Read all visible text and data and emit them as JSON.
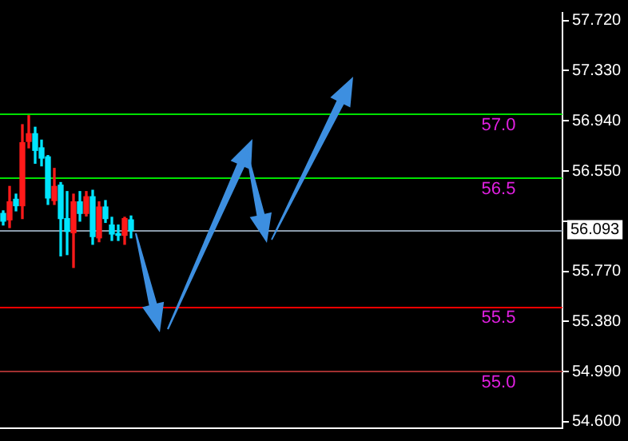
{
  "chart_data": {
    "type": "candlestick",
    "categories": [
      null,
      null,
      null,
      null,
      null,
      null,
      null,
      null,
      null,
      null,
      null,
      null,
      null,
      null,
      null,
      null,
      null,
      null,
      null,
      null,
      null,
      null,
      null,
      null,
      null,
      null,
      null,
      null,
      null,
      null,
      null,
      null,
      null,
      null,
      null,
      null,
      null,
      null,
      null,
      null,
      null,
      null,
      null,
      null,
      null,
      null,
      null,
      null,
      null,
      null,
      null,
      null,
      null,
      null,
      null,
      null,
      null,
      null,
      null,
      null,
      null,
      null,
      null,
      null,
      null,
      null,
      null,
      null,
      null,
      null,
      null,
      null,
      null,
      null,
      null,
      null,
      null,
      null,
      null,
      null,
      null,
      null,
      null,
      null,
      null,
      null,
      null,
      null
    ],
    "ohlc": [
      [
        56.22,
        56.24,
        56.13,
        56.16
      ],
      [
        56.17,
        56.43,
        56.11,
        56.31
      ],
      [
        56.33,
        56.37,
        56.24,
        56.28
      ],
      [
        56.28,
        56.91,
        56.18,
        56.77
      ],
      [
        56.78,
        56.98,
        56.73,
        56.84
      ],
      [
        56.84,
        56.89,
        56.61,
        56.71
      ],
      [
        56.73,
        56.79,
        56.59,
        56.65
      ],
      [
        56.66,
        56.67,
        56.29,
        56.34
      ],
      [
        56.32,
        56.57,
        56.29,
        56.43
      ],
      [
        56.44,
        56.46,
        55.89,
        56.18
      ],
      [
        56.18,
        56.39,
        55.9,
        56.08
      ],
      [
        56.07,
        56.37,
        55.8,
        56.31
      ],
      [
        56.31,
        56.39,
        56.16,
        56.22
      ],
      [
        56.22,
        56.39,
        56.2,
        56.35
      ],
      [
        56.35,
        56.4,
        55.98,
        56.04
      ],
      [
        56.03,
        56.31,
        56.0,
        56.27
      ],
      [
        56.27,
        56.32,
        56.15,
        56.18
      ],
      [
        56.13,
        56.19,
        56.01,
        56.06
      ],
      [
        56.06,
        56.13,
        56.01,
        56.05
      ],
      [
        56.05,
        56.19,
        55.98,
        56.18
      ],
      [
        56.17,
        56.2,
        56.03,
        56.09
      ],
      null,
      null,
      null,
      null,
      null,
      null,
      null,
      null,
      null,
      null,
      null,
      null,
      null,
      null,
      null,
      null,
      null,
      null,
      null,
      null,
      null,
      null,
      null,
      null,
      null,
      null,
      null,
      null,
      null,
      null,
      null,
      null,
      null,
      null,
      null,
      null,
      null,
      null,
      null,
      null,
      null,
      null,
      null,
      null,
      null,
      null,
      null,
      null,
      null,
      null,
      null,
      null,
      null,
      null,
      null,
      null,
      null,
      null,
      null,
      null,
      null,
      null,
      null,
      null,
      null,
      null,
      null
    ],
    "colors": [
      "#00e5ff",
      "#ff1a1a",
      "#00e5ff",
      "#ff1a1a",
      "#ff1a1a",
      "#00e5ff",
      "#00e5ff",
      "#00e5ff",
      "#ff1a1a",
      "#00e5ff",
      "#00e5ff",
      "#ff1a1a",
      "#00e5ff",
      "#ff1a1a",
      "#00e5ff",
      "#ff1a1a",
      "#00e5ff",
      "#00e5ff",
      "#00e5ff",
      "#ff1a1a",
      "#00e5ff",
      null,
      null,
      null,
      null,
      null,
      null,
      null,
      null,
      null,
      null,
      null,
      null,
      null,
      null,
      null,
      null,
      null,
      null,
      null,
      null,
      null,
      null,
      null,
      null,
      null,
      null,
      null,
      null,
      null,
      null,
      null,
      null,
      null,
      null,
      null,
      null,
      null,
      null,
      null,
      null,
      null,
      null,
      null,
      null,
      null,
      null,
      null,
      null,
      null,
      null,
      null,
      null,
      null,
      null,
      null,
      null,
      null,
      null,
      null,
      null,
      null,
      null,
      null,
      null,
      null,
      null,
      null
    ],
    "ylim": [
      54.55,
      57.78
    ],
    "yticks": [
      {
        "value": 57.72,
        "label": "57.720"
      },
      {
        "value": 57.33,
        "label": "57.330"
      },
      {
        "value": 56.94,
        "label": "56.940"
      },
      {
        "value": 56.55,
        "label": "56.550"
      },
      {
        "value": 56.16,
        "label": null
      },
      {
        "value": 55.77,
        "label": "55.770"
      },
      {
        "value": 55.38,
        "label": "55.380"
      },
      {
        "value": 54.99,
        "label": "54.990"
      },
      {
        "value": 54.6,
        "label": "54.600"
      }
    ],
    "tick_labels": "y",
    "grid": false,
    "legend": false,
    "ref_lines": [
      {
        "axis": "y",
        "value": 57.0,
        "label": "57.0",
        "color": "#00e000"
      },
      {
        "axis": "y",
        "value": 56.5,
        "label": "56.5",
        "color": "#00e000"
      },
      {
        "axis": "y",
        "value": 56.093,
        "color": "#8a9aaa"
      },
      {
        "axis": "y",
        "value": 55.5,
        "label": "55.5",
        "color": "#ff0000"
      },
      {
        "axis": "y",
        "value": 55.0,
        "label": "55.0",
        "color": "#a03030"
      }
    ],
    "annotations": [
      {
        "text": "56.093",
        "y": 56.093
      }
    ]
  }
}
